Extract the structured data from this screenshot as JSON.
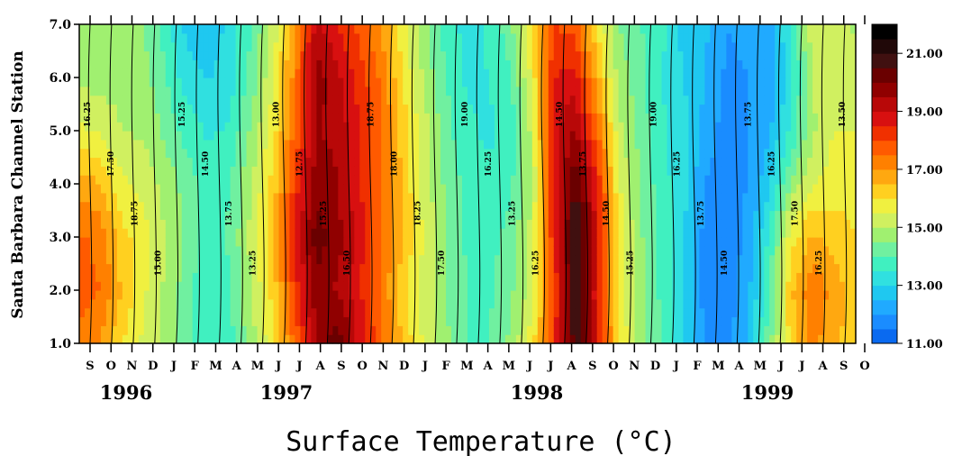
{
  "chart_data": {
    "type": "heatmap",
    "xlabel": "",
    "ylabel": "Santa Barbara Channel Station",
    "caption": "Surface Temperature (°C)",
    "ylim": [
      1.0,
      7.0
    ],
    "yticks": [
      "1.0",
      "2.0",
      "3.0",
      "4.0",
      "5.0",
      "6.0",
      "7.0"
    ],
    "month_labels": [
      "S",
      "O",
      "N",
      "D",
      "J",
      "F",
      "M",
      "A",
      "M",
      "J",
      "J",
      "A",
      "S",
      "O",
      "N",
      "D",
      "J",
      "F",
      "M",
      "A",
      "M",
      "J",
      "J",
      "A",
      "S",
      "O",
      "N",
      "D",
      "J",
      "F",
      "M",
      "A",
      "M",
      "J",
      "J",
      "A",
      "S",
      "O"
    ],
    "year_labels": [
      "1996",
      "1997",
      "1998",
      "1999"
    ],
    "colorbar": {
      "min": 11.0,
      "max": 22.0,
      "step": 0.5,
      "tick_labels": [
        "11.00",
        "13.00",
        "15.00",
        "17.00",
        "19.00",
        "21.00"
      ],
      "colors": [
        "#0a6af0",
        "#1a8cff",
        "#20aaff",
        "#1fc8f0",
        "#30e0e0",
        "#40f0c0",
        "#70f0a0",
        "#a0f070",
        "#d0f060",
        "#f0f040",
        "#ffd020",
        "#ffa810",
        "#ff8000",
        "#ff5a00",
        "#f03000",
        "#d81010",
        "#b80808",
        "#900000",
        "#6a0000",
        "#401010",
        "#200808",
        "#000000"
      ]
    },
    "contour_labels": [
      "16.25",
      "17.50",
      "18.75",
      "15.00",
      "15.25",
      "14.50",
      "13.75",
      "13.25",
      "13.00",
      "12.75",
      "15.25",
      "16.50",
      "18.75",
      "18.00",
      "18.25",
      "17.50",
      "19.00",
      "16.25",
      "13.25",
      "16.25",
      "14.50",
      "13.75",
      "14.50",
      "15.25",
      "19.00",
      "16.25",
      "13.75",
      "14.50",
      "13.75",
      "16.25",
      "17.50",
      "16.25",
      "13.50"
    ],
    "columns": [
      [
        17.2,
        17.8,
        17.6,
        16.8,
        15.6,
        14.9,
        14.6
      ],
      [
        17.0,
        17.5,
        17.3,
        16.5,
        15.4,
        14.8,
        14.5
      ],
      [
        16.0,
        16.4,
        16.2,
        15.6,
        15.0,
        14.8,
        14.6
      ],
      [
        15.4,
        15.6,
        15.7,
        15.3,
        14.9,
        14.7,
        14.5
      ],
      [
        14.8,
        14.9,
        15.0,
        14.8,
        14.4,
        14.0,
        13.8
      ],
      [
        14.1,
        14.2,
        14.4,
        14.3,
        13.8,
        13.2,
        12.8
      ],
      [
        13.6,
        13.5,
        13.6,
        13.7,
        13.4,
        13.0,
        12.5
      ],
      [
        13.8,
        14.0,
        14.1,
        14.0,
        13.6,
        13.3,
        13.2
      ],
      [
        14.8,
        15.0,
        15.2,
        15.0,
        14.6,
        14.2,
        14.0
      ],
      [
        15.8,
        16.2,
        16.5,
        16.2,
        15.8,
        15.5,
        15.2
      ],
      [
        17.6,
        18.2,
        18.6,
        18.2,
        17.6,
        17.2,
        17.0
      ],
      [
        19.5,
        19.8,
        20.3,
        19.8,
        19.5,
        19.8,
        19.2
      ],
      [
        20.4,
        19.4,
        19.7,
        19.5,
        19.4,
        19.1,
        18.5
      ],
      [
        18.8,
        18.6,
        18.7,
        18.6,
        18.5,
        18.3,
        17.8
      ],
      [
        17.6,
        17.4,
        17.5,
        17.6,
        17.6,
        17.4,
        17.0
      ],
      [
        16.4,
        16.2,
        16.5,
        16.4,
        16.3,
        16.0,
        15.6
      ],
      [
        15.4,
        15.3,
        15.4,
        15.3,
        15.2,
        14.9,
        14.6
      ],
      [
        14.6,
        14.5,
        14.5,
        14.4,
        14.2,
        14.0,
        13.8
      ],
      [
        14.0,
        14.0,
        13.9,
        13.8,
        13.6,
        13.4,
        13.3
      ],
      [
        14.0,
        13.9,
        13.8,
        13.6,
        13.4,
        13.5,
        13.6
      ],
      [
        14.6,
        14.4,
        14.2,
        13.9,
        13.7,
        13.9,
        14.3
      ],
      [
        15.8,
        15.3,
        15.2,
        15.0,
        15.2,
        15.6,
        16.2
      ],
      [
        18.3,
        18.0,
        18.4,
        18.5,
        18.8,
        18.5,
        18.0
      ],
      [
        20.8,
        21.0,
        21.2,
        20.5,
        19.6,
        18.7,
        17.8
      ],
      [
        18.8,
        18.7,
        18.9,
        18.6,
        17.6,
        16.7,
        16.0
      ],
      [
        16.0,
        15.8,
        15.8,
        15.6,
        15.2,
        14.8,
        14.5
      ],
      [
        14.8,
        14.6,
        14.6,
        14.5,
        14.3,
        14.2,
        14.0
      ],
      [
        14.0,
        13.9,
        13.8,
        13.7,
        13.6,
        13.5,
        13.7
      ],
      [
        13.0,
        13.0,
        13.1,
        13.2,
        13.2,
        13.0,
        12.8
      ],
      [
        12.0,
        11.8,
        11.8,
        12.0,
        12.3,
        12.5,
        12.6
      ],
      [
        11.8,
        11.6,
        11.6,
        11.7,
        11.8,
        11.9,
        12.0
      ],
      [
        12.6,
        12.3,
        12.2,
        12.0,
        12.0,
        12.0,
        12.1
      ],
      [
        14.3,
        14.0,
        13.6,
        12.9,
        12.4,
        12.2,
        12.3
      ],
      [
        16.2,
        16.4,
        15.8,
        14.6,
        13.6,
        13.3,
        13.5
      ],
      [
        17.2,
        17.4,
        16.6,
        15.4,
        14.9,
        15.0,
        15.3
      ],
      [
        16.6,
        16.8,
        16.3,
        15.8,
        15.5,
        15.3,
        15.2
      ],
      [
        16.2,
        16.2,
        16.0,
        15.8,
        15.5,
        15.2,
        14.9
      ]
    ]
  }
}
